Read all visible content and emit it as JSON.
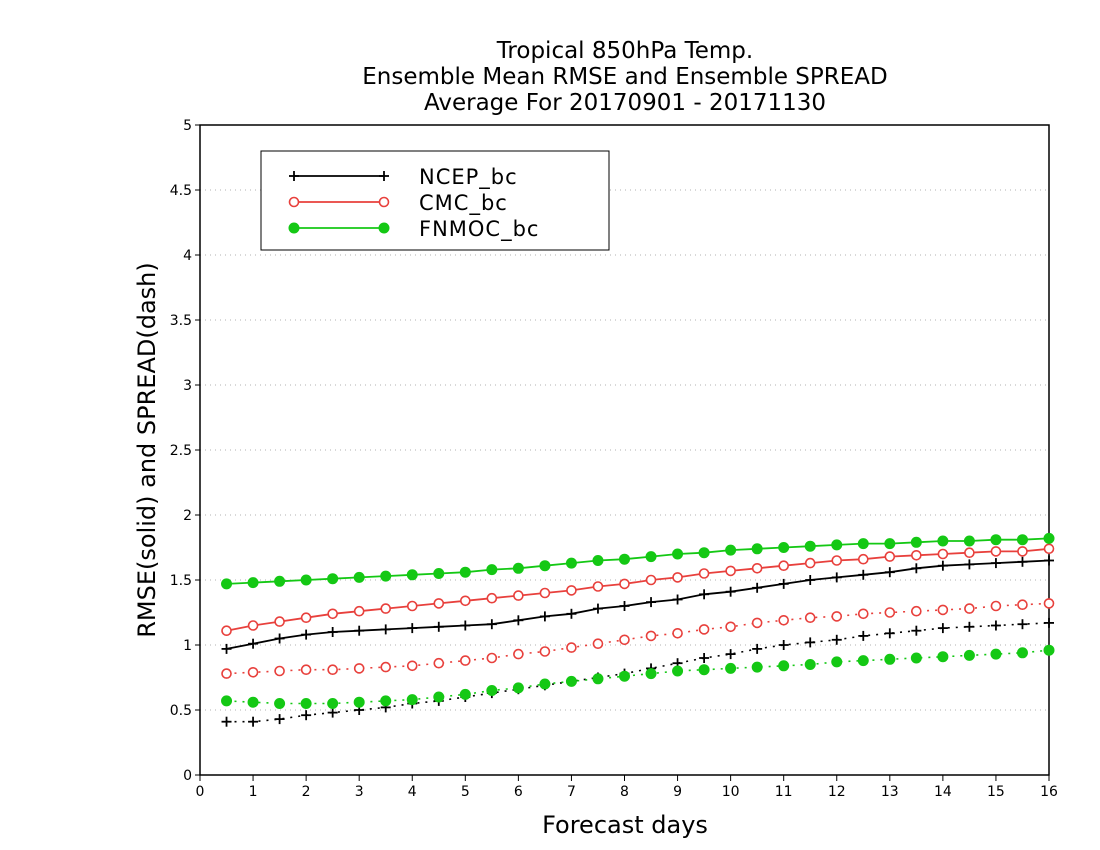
{
  "chart_data": {
    "type": "line",
    "title": [
      "Tropical 850hPa Temp.",
      "Ensemble Mean RMSE and Ensemble SPREAD",
      "Average For 20170901 - 20171130"
    ],
    "xlabel": "Forecast days",
    "ylabel": "RMSE(solid) and SPREAD(dash)",
    "xlim": [
      0,
      16
    ],
    "ylim": [
      0,
      5
    ],
    "xticks": [
      "0",
      "1",
      "2",
      "3",
      "4",
      "5",
      "6",
      "7",
      "8",
      "9",
      "10",
      "11",
      "12",
      "13",
      "14",
      "15",
      "16"
    ],
    "yticks": [
      "0",
      "0.5",
      "1",
      "1.5",
      "2",
      "2.5",
      "3",
      "3.5",
      "4",
      "4.5",
      "5"
    ],
    "grid": "horizontal dotted",
    "legend_position": "top-left",
    "x": [
      0.5,
      1,
      1.5,
      2,
      2.5,
      3,
      3.5,
      4,
      4.5,
      5,
      5.5,
      6,
      6.5,
      7,
      7.5,
      8,
      8.5,
      9,
      9.5,
      10,
      10.5,
      11,
      11.5,
      12,
      12.5,
      13,
      13.5,
      14,
      14.5,
      15,
      15.5,
      16
    ],
    "series": [
      {
        "name": "NCEP_bc",
        "metric": "RMSE",
        "style": "solid",
        "marker": "plus",
        "color": "#000000",
        "values": [
          0.97,
          1.01,
          1.05,
          1.08,
          1.1,
          1.11,
          1.12,
          1.13,
          1.14,
          1.15,
          1.16,
          1.19,
          1.22,
          1.24,
          1.28,
          1.3,
          1.33,
          1.35,
          1.39,
          1.41,
          1.44,
          1.47,
          1.5,
          1.52,
          1.54,
          1.56,
          1.59,
          1.61,
          1.62,
          1.63,
          1.64,
          1.65
        ]
      },
      {
        "name": "CMC_bc",
        "metric": "RMSE",
        "style": "solid",
        "marker": "open-circle",
        "color": "#e8403c",
        "values": [
          1.11,
          1.15,
          1.18,
          1.21,
          1.24,
          1.26,
          1.28,
          1.3,
          1.32,
          1.34,
          1.36,
          1.38,
          1.4,
          1.42,
          1.45,
          1.47,
          1.5,
          1.52,
          1.55,
          1.57,
          1.59,
          1.61,
          1.63,
          1.65,
          1.66,
          1.68,
          1.69,
          1.7,
          1.71,
          1.72,
          1.72,
          1.74
        ]
      },
      {
        "name": "FNMOC_bc",
        "metric": "RMSE",
        "style": "solid",
        "marker": "filled-circle",
        "color": "#14c814",
        "values": [
          1.47,
          1.48,
          1.49,
          1.5,
          1.51,
          1.52,
          1.53,
          1.54,
          1.55,
          1.56,
          1.58,
          1.59,
          1.61,
          1.63,
          1.65,
          1.66,
          1.68,
          1.7,
          1.71,
          1.73,
          1.74,
          1.75,
          1.76,
          1.77,
          1.78,
          1.78,
          1.79,
          1.8,
          1.8,
          1.81,
          1.81,
          1.82
        ]
      },
      {
        "name": "NCEP_bc",
        "metric": "SPREAD",
        "style": "dash",
        "marker": "plus",
        "color": "#000000",
        "values": [
          0.41,
          0.41,
          0.43,
          0.46,
          0.48,
          0.5,
          0.52,
          0.55,
          0.57,
          0.6,
          0.63,
          0.66,
          0.69,
          0.72,
          0.75,
          0.78,
          0.82,
          0.86,
          0.9,
          0.93,
          0.97,
          1.0,
          1.02,
          1.04,
          1.07,
          1.09,
          1.11,
          1.13,
          1.14,
          1.15,
          1.16,
          1.17
        ]
      },
      {
        "name": "CMC_bc",
        "metric": "SPREAD",
        "style": "dash",
        "marker": "open-circle",
        "color": "#e8403c",
        "values": [
          0.78,
          0.79,
          0.8,
          0.81,
          0.81,
          0.82,
          0.83,
          0.84,
          0.86,
          0.88,
          0.9,
          0.93,
          0.95,
          0.98,
          1.01,
          1.04,
          1.07,
          1.09,
          1.12,
          1.14,
          1.17,
          1.19,
          1.21,
          1.22,
          1.24,
          1.25,
          1.26,
          1.27,
          1.28,
          1.3,
          1.31,
          1.32
        ]
      },
      {
        "name": "FNMOC_bc",
        "metric": "SPREAD",
        "style": "dash",
        "marker": "filled-circle",
        "color": "#14c814",
        "values": [
          0.57,
          0.56,
          0.55,
          0.55,
          0.55,
          0.56,
          0.57,
          0.58,
          0.6,
          0.62,
          0.65,
          0.67,
          0.7,
          0.72,
          0.74,
          0.76,
          0.78,
          0.8,
          0.81,
          0.82,
          0.83,
          0.84,
          0.85,
          0.87,
          0.88,
          0.89,
          0.9,
          0.91,
          0.92,
          0.93,
          0.94,
          0.96
        ]
      }
    ],
    "legend": [
      {
        "label": "NCEP_bc",
        "color": "#000000",
        "marker": "plus"
      },
      {
        "label": "CMC_bc",
        "color": "#e8403c",
        "marker": "open-circle"
      },
      {
        "label": "FNMOC_bc",
        "color": "#14c814",
        "marker": "filled-circle"
      }
    ]
  }
}
